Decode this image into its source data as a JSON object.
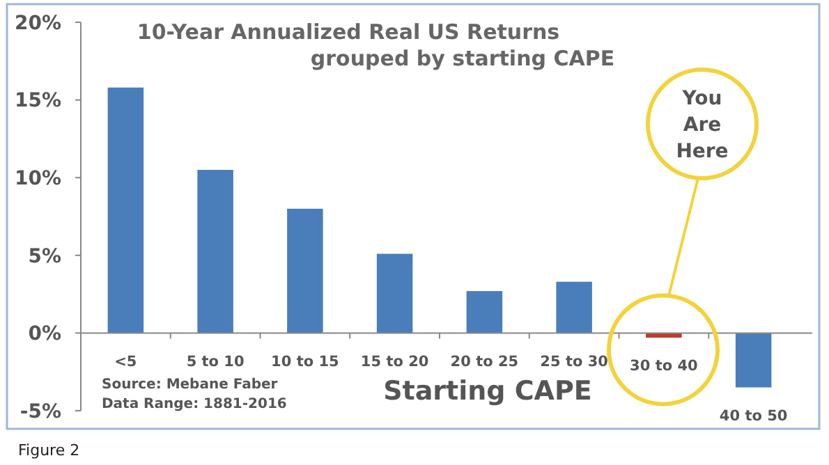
{
  "chart_data": {
    "type": "bar",
    "title": "10-Year Annualized Real US Returns\ngrouped by starting CAPE",
    "xlabel": "Starting CAPE",
    "categories": [
      "<5",
      "5 to 10",
      "10 to 15",
      "15 to 20",
      "20 to 25",
      "25 to 30",
      "30 to 40",
      "40 to 50"
    ],
    "values": [
      15.8,
      10.5,
      8.0,
      5.1,
      2.7,
      3.3,
      -0.3,
      -3.5
    ],
    "colors": [
      "#4a7ebb",
      "#4a7ebb",
      "#4a7ebb",
      "#4a7ebb",
      "#4a7ebb",
      "#4a7ebb",
      "#c0392b",
      "#4a7ebb"
    ],
    "ylim": [
      -5,
      20
    ],
    "yticks": [
      {
        "value": -5,
        "label": "-5%"
      },
      {
        "value": 0,
        "label": "0%"
      },
      {
        "value": 5,
        "label": "5%"
      },
      {
        "value": 10,
        "label": "10%"
      },
      {
        "value": 15,
        "label": "15%"
      },
      {
        "value": 20,
        "label": "20%"
      }
    ],
    "annotations": [
      "Source: Mebane Faber",
      "Data Range: 1881-2016",
      "Figure 2",
      "You Are Here"
    ]
  }
}
